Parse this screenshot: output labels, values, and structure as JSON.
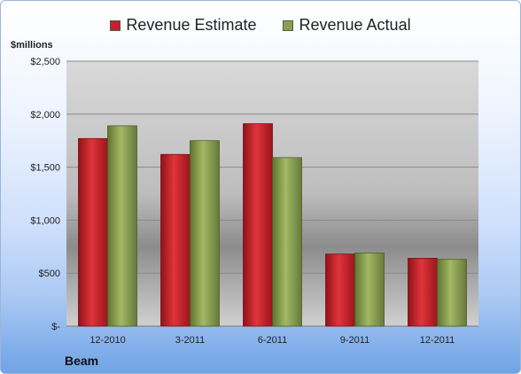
{
  "legend": {
    "estimate_label": "Revenue Estimate",
    "actual_label": "Revenue Actual"
  },
  "unit_label": "$millions",
  "company": "Beam",
  "colors": {
    "estimate": "#c0232a",
    "actual": "#8aa04e"
  },
  "chart_data": {
    "type": "bar",
    "categories": [
      "12-2010",
      "3-2011",
      "6-2011",
      "9-2011",
      "12-2011"
    ],
    "series": [
      {
        "name": "Revenue Estimate",
        "values": [
          1770,
          1620,
          1910,
          680,
          640
        ]
      },
      {
        "name": "Revenue Actual",
        "values": [
          1890,
          1750,
          1590,
          690,
          630
        ]
      }
    ],
    "ylim": [
      0,
      2500
    ],
    "yticks": [
      0,
      500,
      1000,
      1500,
      2000,
      2500
    ],
    "ytick_labels": [
      "$-",
      "$500",
      "$1,000",
      "$1,500",
      "$2,000",
      "$2,500"
    ],
    "grid": true,
    "legend_position": "top"
  }
}
